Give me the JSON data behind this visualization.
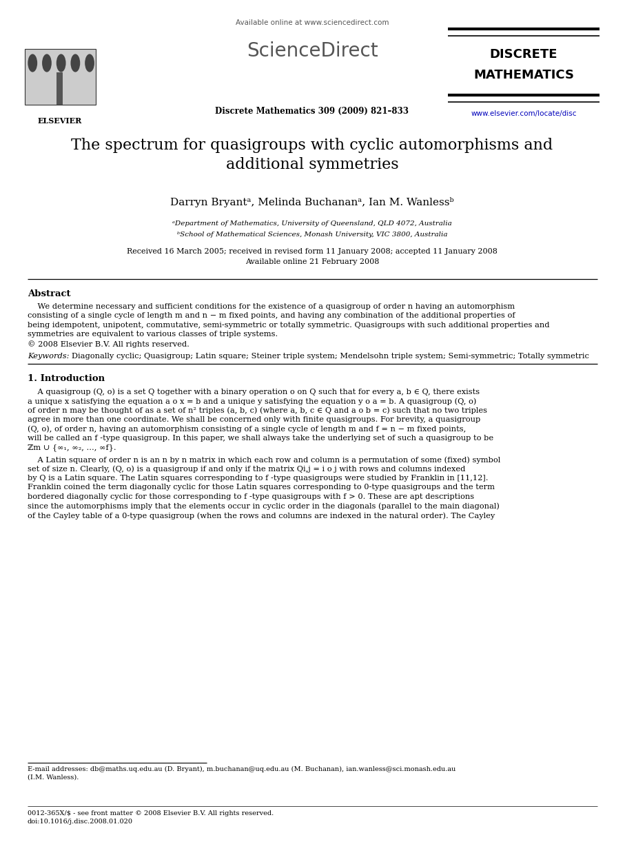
{
  "title_line1": "The spectrum for quasigroups with cyclic automorphisms and",
  "title_line2": "additional symmetries",
  "authors": "Darryn Bryantᵃ, Melinda Buchananᵃ, Ian M. Wanlessᵇ",
  "affil_a": "ᵃDepartment of Mathematics, University of Queensland, QLD 4072, Australia",
  "affil_b": "ᵇSchool of Mathematical Sciences, Monash University, VIC 3800, Australia",
  "received": "Received 16 March 2005; received in revised form 11 January 2008; accepted 11 January 2008",
  "available": "Available online 21 February 2008",
  "journal": "Discrete Mathematics 309 (2009) 821–833",
  "journal_name_1": "DISCRETE",
  "journal_name_2": "MATHEMATICS",
  "url": "www.elsevier.com/locate/disc",
  "sciencedirect_text": "Available online at www.sciencedirect.com",
  "elsevier_text": "ELSEVIER",
  "abstract_title": "Abstract",
  "abstract_body": "    We determine necessary and sufficient conditions for the existence of a quasigroup of order n having an automorphism\nconsisting of a single cycle of length m and n − m fixed points, and having any combination of the additional properties of\nbeing idempotent, unipotent, commutative, semi-symmetric or totally symmetric. Quasigroups with such additional properties and\nsymmetries are equivalent to various classes of triple systems.\n© 2008 Elsevier B.V. All rights reserved.",
  "keywords_italic": "Keywords: ",
  "keywords": "Diagonally cyclic; Quasigroup; Latin square; Steiner triple system; Mendelsohn triple system; Semi-symmetric; Totally symmetric",
  "section1_title": "1. Introduction",
  "intro_p1_line1": "    A quasigroup (Q, o) is a set Q together with a binary operation o on Q such that for every a, b ∈ Q, there exists",
  "intro_p1_line2": "a unique x satisfying the equation a o x = b and a unique y satisfying the equation y o a = b. A quasigroup (Q, o)",
  "intro_p1_line3": "of order n may be thought of as a set of n² triples (a, b, c) (where a, b, c ∈ Q and a o b = c) such that no two triples",
  "intro_p1_line4": "agree in more than one coordinate. We shall be concerned only with finite quasigroups. For brevity, a quasigroup",
  "intro_p1_line5": "(Q, o), of order n, having an automorphism consisting of a single cycle of length m and f = n − m fixed points,",
  "intro_p1_line6": "will be called an f-type quasigroup. In this paper, we shall always take the underlying set of such a quasigroup to be",
  "intro_p1_line7": "ℤm ∪ {∞₁, ∞₂, ..., ∞f}.",
  "intro_p2_line1": "    A Latin square of order n is an n by n matrix in which each row and column is a permutation of some (fixed) symbol",
  "intro_p2_line2": "set of size n. Clearly, (Q, o) is a quasigroup if and only if the matrix Qi,j = i o j with rows and columns indexed",
  "intro_p2_line3": "by Q is a Latin square. The Latin squares corresponding to f-type quasigroups were studied by Franklin in [11,12].",
  "intro_p2_line4": "Franklin coined the term diagonally cyclic for those Latin squares corresponding to 0-type quasigroups and the term",
  "intro_p2_line5": "bordered diagonally cyclic for those corresponding to f-type quasigroups with f > 0. These are apt descriptions",
  "intro_p2_line6": "since the automorphisms imply that the elements occur in cyclic order in the diagonals (parallel to the main diagonal)",
  "intro_p2_line7": "of the Cayley table of a 0-type quasigroup (when the rows and columns are indexed in the natural order). The Cayley",
  "footnote": "E-mail addresses: db@maths.uq.edu.au (D. Bryant), m.buchanan@uq.edu.au (M. Buchanan), ian.wanless@sci.monash.edu.au",
  "footnote2": "(I.M. Wanless).",
  "footer1": "0012-365X/$ - see front matter © 2008 Elsevier B.V. All rights reserved.",
  "footer2": "doi:10.1016/j.disc.2008.01.020",
  "bg_color": "#ffffff",
  "black": "#000000",
  "blue": "#0000bb",
  "gray_logo": "#aaaaaa"
}
